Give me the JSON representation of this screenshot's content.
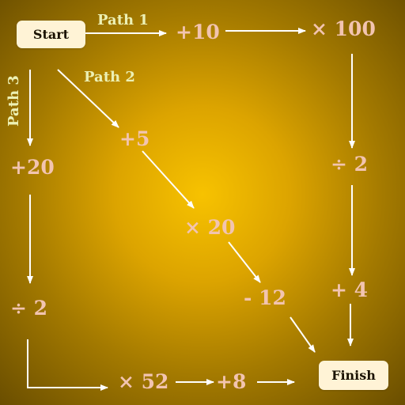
{
  "nodes": {
    "start": "Start",
    "finish": "Finish"
  },
  "paths": {
    "path1": {
      "label": "Path 1",
      "steps": [
        "+10",
        "× 100",
        "÷ 2",
        "+ 4"
      ]
    },
    "path2": {
      "label": "Path 2",
      "steps": [
        "+5",
        "× 20",
        "- 12"
      ]
    },
    "path3": {
      "label": "Path 3",
      "steps": [
        "+20",
        "÷ 2",
        "× 52",
        "+8"
      ]
    }
  },
  "colors": {
    "background_center": "#f7c200",
    "background_edge": "#6a4e00",
    "box_fill": "#fff3d6",
    "operation_text": "#f2c4b0",
    "path_label_text": "#ecf0b4",
    "arrow": "#ffffff"
  }
}
